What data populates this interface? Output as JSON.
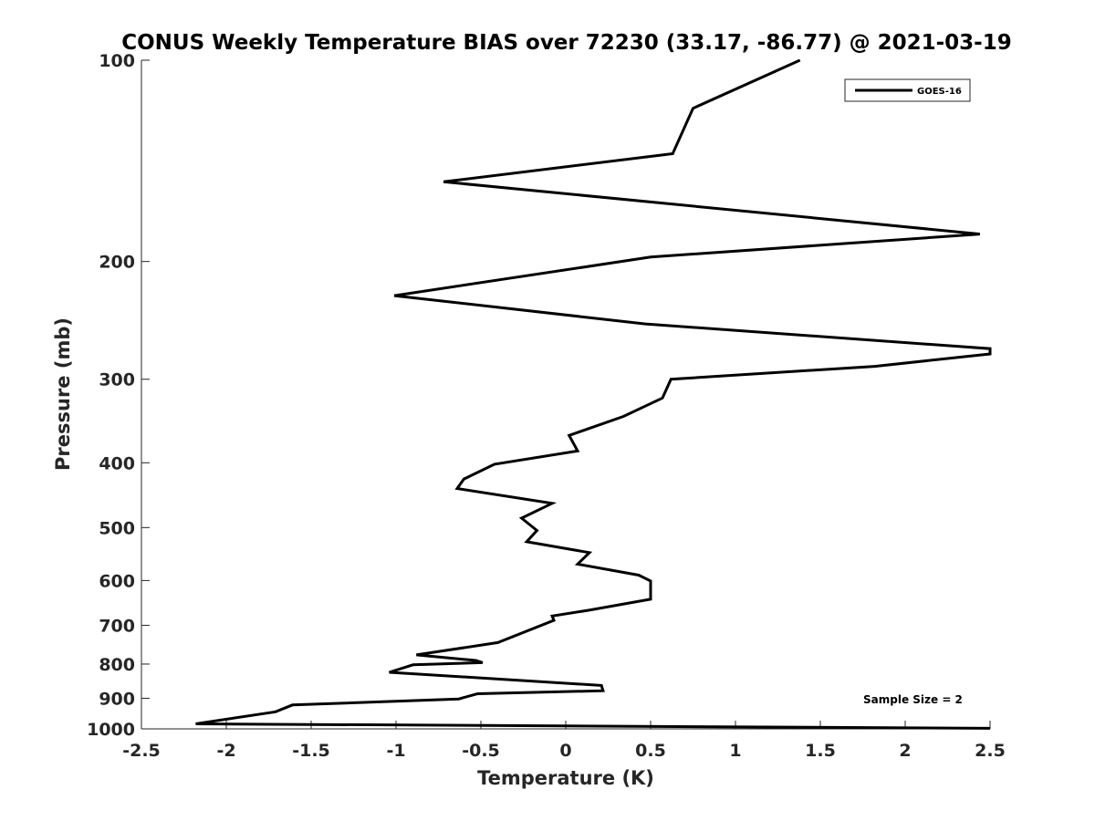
{
  "chart_data": {
    "type": "line",
    "title": "CONUS Weekly Temperature BIAS over 72230 (33.17, -86.77) @ 2021-03-19",
    "xlabel": "Temperature (K)",
    "ylabel": "Pressure (mb)",
    "xlim": [
      -2.5,
      2.5
    ],
    "ylim": [
      100,
      1000
    ],
    "y_scale": "log",
    "y_reversed": true,
    "x_ticks": [
      -2.5,
      -2,
      -1.5,
      -1,
      -0.5,
      0,
      0.5,
      1,
      1.5,
      2,
      2.5
    ],
    "x_tick_labels": [
      "-2.5",
      "-2",
      "-1.5",
      "-1",
      "-0.5",
      "0",
      "0.5",
      "1",
      "1.5",
      "2",
      "2.5"
    ],
    "y_ticks": [
      100,
      200,
      300,
      400,
      500,
      600,
      700,
      800,
      900,
      1000
    ],
    "y_tick_labels": [
      "100",
      "200",
      "300",
      "400",
      "500",
      "600",
      "700",
      "800",
      "900",
      "1000"
    ],
    "legend": {
      "position": "top-right",
      "entries": [
        "GOES-16"
      ]
    },
    "annotation": "Sample Size = 2",
    "series": [
      {
        "name": "GOES-16",
        "color": "#000000",
        "x": [
          1.38,
          0.75,
          0.63,
          -0.72,
          2.44,
          0.5,
          -1.01,
          0.47,
          2.5,
          2.5,
          1.82,
          0.62,
          0.57,
          0.34,
          0.02,
          0.07,
          -0.42,
          -0.6,
          -0.64,
          -0.08,
          -0.26,
          -0.17,
          -0.23,
          0.14,
          0.07,
          0.43,
          0.5,
          0.5,
          0.13,
          -0.08,
          -0.07,
          -0.4,
          -0.88,
          -0.53,
          -0.49,
          -0.9,
          -1.04,
          0.21,
          0.22,
          -0.52,
          -0.63,
          -1.61,
          -1.71,
          -2.18,
          2.5
        ],
        "y": [
          100,
          118,
          138,
          152,
          182,
          197,
          225,
          248,
          270,
          275,
          287,
          300,
          320,
          341,
          364,
          384,
          402,
          423,
          437,
          460,
          484,
          505,
          525,
          545,
          567,
          589,
          601,
          640,
          665,
          678,
          688,
          743,
          775,
          790,
          796,
          802,
          823,
          861,
          877,
          886,
          902,
          921,
          943,
          983,
          998
        ]
      }
    ]
  }
}
